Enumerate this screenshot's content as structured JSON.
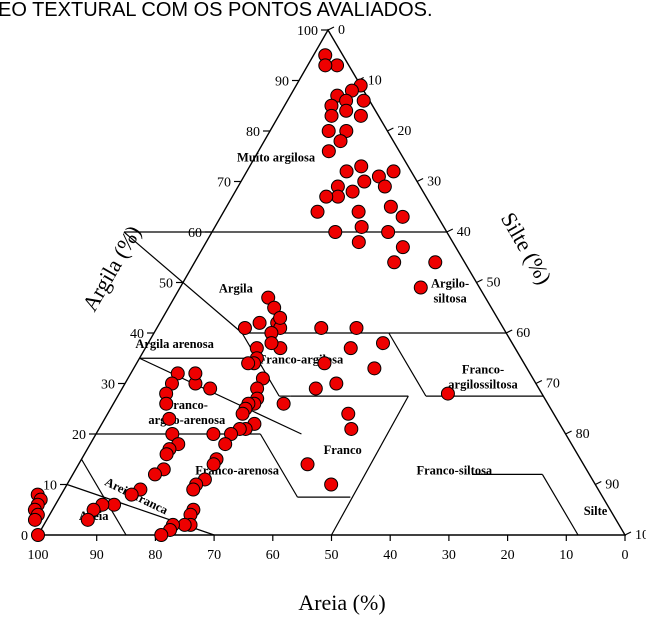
{
  "header": {
    "title_fragment": "EO TEXTURAL COM OS PONTOS AVALIADOS."
  },
  "chart_data": {
    "type": "scatter",
    "subtype": "soil-texture-triangle",
    "xlabel": "Areia (%)",
    "left_label": "Argila (%)",
    "right_label": "Silte (%)",
    "sand_ticks": [
      "100",
      "90",
      "80",
      "70",
      "60",
      "50",
      "40",
      "30",
      "20",
      "10",
      "0"
    ],
    "clay_ticks": [
      "0",
      "10",
      "20",
      "30",
      "40",
      "50",
      "60",
      "70",
      "80",
      "90",
      "100"
    ],
    "silt_ticks": [
      "0",
      "10",
      "20",
      "30",
      "40",
      "50",
      "60",
      "70",
      "80",
      "90",
      "100"
    ],
    "classes": [
      "Muito argilosa",
      "Argila",
      "Argilo-\nsiltosa",
      "Argila arenosa",
      "Franco-argilosa",
      "Franco-\nargilossiltosa",
      "Franco-\nargilo-arenosa",
      "Franco",
      "Franco-arenosa",
      "Franco-siltosa",
      "Areia-franca",
      "Areia",
      "Silte"
    ],
    "point_color": "#ee0000",
    "points": [
      {
        "sand": 3,
        "clay": 95
      },
      {
        "sand": 2,
        "clay": 93
      },
      {
        "sand": 4,
        "clay": 93
      },
      {
        "sand": 0,
        "clay": 89
      },
      {
        "sand": 2,
        "clay": 88
      },
      {
        "sand": 5,
        "clay": 87
      },
      {
        "sand": 7,
        "clay": 85
      },
      {
        "sand": 1,
        "clay": 86
      },
      {
        "sand": 4,
        "clay": 86
      },
      {
        "sand": 8,
        "clay": 83
      },
      {
        "sand": 3,
        "clay": 83
      },
      {
        "sand": 5,
        "clay": 84
      },
      {
        "sand": 7,
        "clay": 80
      },
      {
        "sand": 10,
        "clay": 80
      },
      {
        "sand": 9,
        "clay": 78
      },
      {
        "sand": 12,
        "clay": 76
      },
      {
        "sand": 11,
        "clay": 72
      },
      {
        "sand": 8,
        "clay": 73
      },
      {
        "sand": 12,
        "clay": 68
      },
      {
        "sand": 14,
        "clay": 69
      },
      {
        "sand": 15,
        "clay": 67
      },
      {
        "sand": 17,
        "clay": 67
      },
      {
        "sand": 20,
        "clay": 64
      },
      {
        "sand": 19,
        "clay": 60
      },
      {
        "sand": 13,
        "clay": 64
      },
      {
        "sand": 9,
        "clay": 70
      },
      {
        "sand": 6,
        "clay": 71
      },
      {
        "sand": 3,
        "clay": 72
      },
      {
        "sand": 9,
        "clay": 57
      },
      {
        "sand": 12,
        "clay": 54
      },
      {
        "sand": 16,
        "clay": 58
      },
      {
        "sand": 10,
        "clay": 60
      },
      {
        "sand": 5,
        "clay": 54
      },
      {
        "sand": 10,
        "clay": 49
      },
      {
        "sand": 7,
        "clay": 65
      },
      {
        "sand": 6,
        "clay": 69
      },
      {
        "sand": 6,
        "clay": 63
      },
      {
        "sand": 14,
        "clay": 61
      },
      {
        "sand": 22,
        "clay": 38
      },
      {
        "sand": 25,
        "clay": 41
      },
      {
        "sand": 28,
        "clay": 37
      },
      {
        "sand": 26,
        "clay": 33
      },
      {
        "sand": 34,
        "clay": 34
      },
      {
        "sand": 38,
        "clay": 29
      },
      {
        "sand": 34,
        "clay": 30
      },
      {
        "sand": 45,
        "clay": 26
      },
      {
        "sand": 36,
        "clay": 21
      },
      {
        "sand": 35,
        "clay": 24
      },
      {
        "sand": 16,
        "clay": 28
      },
      {
        "sand": 45,
        "clay": 10
      },
      {
        "sand": 47,
        "clay": 14
      },
      {
        "sand": 31,
        "clay": 41
      },
      {
        "sand": 37,
        "clay": 47
      },
      {
        "sand": 37,
        "clay": 45
      },
      {
        "sand": 38,
        "clay": 42
      },
      {
        "sand": 38,
        "clay": 41
      },
      {
        "sand": 37,
        "clay": 43
      },
      {
        "sand": 40,
        "clay": 40
      },
      {
        "sand": 40,
        "clay": 37
      },
      {
        "sand": 41,
        "clay": 42
      },
      {
        "sand": 41,
        "clay": 38
      },
      {
        "sand": 44,
        "clay": 41
      },
      {
        "sand": 44,
        "clay": 37
      },
      {
        "sand": 45,
        "clay": 35
      },
      {
        "sand": 46,
        "clay": 34
      },
      {
        "sand": 46,
        "clay": 31
      },
      {
        "sand": 47,
        "clay": 34
      },
      {
        "sand": 48,
        "clay": 29
      },
      {
        "sand": 49,
        "clay": 27
      },
      {
        "sand": 50,
        "clay": 26
      },
      {
        "sand": 51,
        "clay": 26
      },
      {
        "sand": 52,
        "clay": 25
      },
      {
        "sand": 53,
        "clay": 24
      },
      {
        "sand": 52,
        "clay": 22
      },
      {
        "sand": 54,
        "clay": 21
      },
      {
        "sand": 55,
        "clay": 21
      },
      {
        "sand": 57,
        "clay": 20
      },
      {
        "sand": 60,
        "clay": 20
      },
      {
        "sand": 59,
        "clay": 18
      },
      {
        "sand": 62,
        "clay": 15
      },
      {
        "sand": 63,
        "clay": 14
      },
      {
        "sand": 66,
        "clay": 11
      },
      {
        "sand": 68,
        "clay": 10
      },
      {
        "sand": 69,
        "clay": 9
      },
      {
        "sand": 71,
        "clay": 5
      },
      {
        "sand": 72,
        "clay": 4
      },
      {
        "sand": 73,
        "clay": 2
      },
      {
        "sand": 74,
        "clay": 2
      },
      {
        "sand": 76,
        "clay": 2
      },
      {
        "sand": 77,
        "clay": 1
      },
      {
        "sand": 79,
        "clay": 0
      },
      {
        "sand": 60,
        "clay": 32
      },
      {
        "sand": 58,
        "clay": 30
      },
      {
        "sand": 57,
        "clay": 32
      },
      {
        "sand": 56,
        "clay": 29
      },
      {
        "sand": 62,
        "clay": 30
      },
      {
        "sand": 64,
        "clay": 28
      },
      {
        "sand": 65,
        "clay": 26
      },
      {
        "sand": 66,
        "clay": 23
      },
      {
        "sand": 67,
        "clay": 20
      },
      {
        "sand": 67,
        "clay": 18
      },
      {
        "sand": 69,
        "clay": 17
      },
      {
        "sand": 70,
        "clay": 16
      },
      {
        "sand": 72,
        "clay": 13
      },
      {
        "sand": 74,
        "clay": 12
      },
      {
        "sand": 78,
        "clay": 9
      },
      {
        "sand": 80,
        "clay": 8
      },
      {
        "sand": 84,
        "clay": 6
      },
      {
        "sand": 86,
        "clay": 6
      },
      {
        "sand": 88,
        "clay": 5
      },
      {
        "sand": 90,
        "clay": 3
      },
      {
        "sand": 96,
        "clay": 8
      },
      {
        "sand": 96,
        "clay": 7
      },
      {
        "sand": 97,
        "clay": 6
      },
      {
        "sand": 98,
        "clay": 5
      },
      {
        "sand": 98,
        "clay": 4
      },
      {
        "sand": 99,
        "clay": 3
      },
      {
        "sand": 100,
        "clay": 0
      }
    ]
  }
}
